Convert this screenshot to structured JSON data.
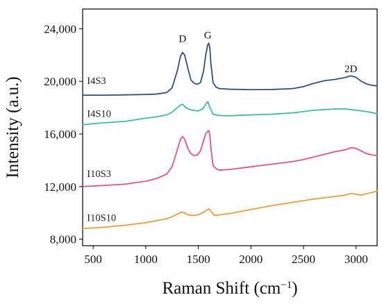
{
  "chart_data": {
    "type": "line",
    "xlabel": "Raman Shift (cm",
    "xlabel_exponent": "−1",
    "xlabel_suffix": ")",
    "ylabel": "Intensity (a.u.)",
    "xlim": [
      400,
      3200
    ],
    "ylim": [
      7500,
      25500
    ],
    "x_ticks": [
      500,
      1000,
      1500,
      2000,
      2500,
      3000
    ],
    "y_ticks": [
      8000,
      12000,
      16000,
      20000,
      24000
    ],
    "x_tick_labels": [
      "500",
      "1000",
      "1500",
      "2000",
      "2500",
      "3000"
    ],
    "y_tick_labels": [
      "8,000",
      "12,000",
      "16,000",
      "20,000",
      "24,000"
    ],
    "grid": false,
    "legend": "none",
    "annotations": [
      {
        "text": "D",
        "x": 1350,
        "y": 23000
      },
      {
        "text": "G",
        "x": 1590,
        "y": 23250
      },
      {
        "text": "2D",
        "x": 2950,
        "y": 20700
      }
    ],
    "series": [
      {
        "name": "I4S3",
        "color": "#2f4f7f",
        "label_at": {
          "x": 415,
          "y": 20050
        },
        "x": [
          400,
          600,
          800,
          1000,
          1100,
          1200,
          1250,
          1300,
          1330,
          1350,
          1370,
          1400,
          1430,
          1460,
          1490,
          1520,
          1550,
          1570,
          1590,
          1600,
          1610,
          1620,
          1640,
          1670,
          1700,
          1800,
          2000,
          2200,
          2400,
          2500,
          2600,
          2700,
          2800,
          2900,
          2950,
          3000,
          3050,
          3100,
          3150,
          3200
        ],
        "y": [
          18950,
          18950,
          18970,
          19000,
          19030,
          19150,
          19500,
          20800,
          21900,
          22200,
          22000,
          21000,
          20100,
          19850,
          19780,
          19900,
          20800,
          22000,
          22800,
          22900,
          22500,
          21300,
          19900,
          19550,
          19450,
          19400,
          19370,
          19380,
          19450,
          19600,
          19850,
          20050,
          20150,
          20300,
          20420,
          20300,
          20000,
          19800,
          19700,
          19650
        ]
      },
      {
        "name": "I4S10",
        "color": "#3dbd98",
        "label_at": {
          "x": 415,
          "y": 17550
        },
        "x": [
          400,
          600,
          800,
          1000,
          1100,
          1200,
          1250,
          1300,
          1340,
          1360,
          1380,
          1420,
          1460,
          1500,
          1540,
          1570,
          1590,
          1610,
          1640,
          1700,
          1800,
          2000,
          2200,
          2400,
          2500,
          2600,
          2700,
          2800,
          2900,
          3000,
          3100,
          3200
        ],
        "y": [
          16700,
          16850,
          16950,
          17200,
          17300,
          17450,
          17650,
          18000,
          18250,
          18200,
          18000,
          17850,
          17780,
          17750,
          17900,
          18250,
          18450,
          18000,
          17500,
          17400,
          17380,
          17450,
          17500,
          17600,
          17700,
          17800,
          17850,
          17900,
          17900,
          17800,
          17700,
          17550
        ]
      },
      {
        "name": "I10S3",
        "color": "#e9527d",
        "label_at": {
          "x": 415,
          "y": 13000
        },
        "x": [
          400,
          600,
          800,
          1000,
          1100,
          1200,
          1250,
          1300,
          1330,
          1350,
          1370,
          1400,
          1430,
          1460,
          1490,
          1520,
          1550,
          1570,
          1590,
          1600,
          1610,
          1620,
          1640,
          1670,
          1700,
          1800,
          2000,
          2200,
          2400,
          2500,
          2600,
          2700,
          2800,
          2900,
          2950,
          3000,
          3050,
          3100,
          3150,
          3200
        ],
        "y": [
          12000,
          12080,
          12180,
          12400,
          12600,
          12950,
          13500,
          14800,
          15600,
          15800,
          15600,
          14900,
          14500,
          14350,
          14400,
          14700,
          15500,
          16000,
          16200,
          16250,
          15900,
          14900,
          13600,
          13350,
          13250,
          13300,
          13500,
          13700,
          13900,
          14050,
          14250,
          14450,
          14650,
          14800,
          14950,
          14900,
          14700,
          14500,
          14400,
          14350
        ]
      },
      {
        "name": "I10S10",
        "color": "#f29a35",
        "label_at": {
          "x": 415,
          "y": 9650
        },
        "x": [
          400,
          600,
          800,
          1000,
          1100,
          1200,
          1250,
          1300,
          1340,
          1370,
          1400,
          1450,
          1500,
          1550,
          1580,
          1600,
          1620,
          1640,
          1660,
          1700,
          1800,
          2000,
          2200,
          2400,
          2600,
          2800,
          2900,
          2950,
          3000,
          3050,
          3100,
          3150,
          3200
        ],
        "y": [
          8800,
          8900,
          9050,
          9250,
          9400,
          9550,
          9700,
          9900,
          10050,
          10000,
          9850,
          9800,
          9850,
          10050,
          10200,
          10300,
          10150,
          9900,
          9800,
          9850,
          9950,
          10250,
          10550,
          10800,
          11050,
          11250,
          11350,
          11480,
          11400,
          11350,
          11450,
          11550,
          11650
        ]
      }
    ]
  }
}
